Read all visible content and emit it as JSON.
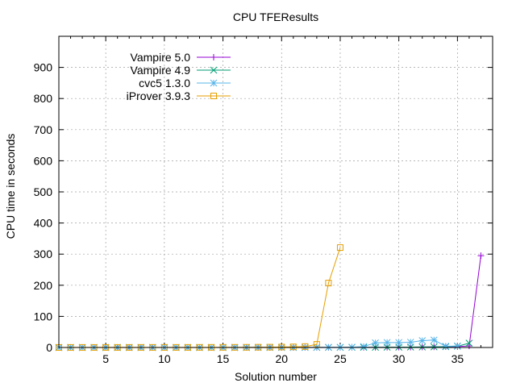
{
  "chart_data": {
    "type": "line",
    "title": "CPU TFEResults",
    "xlabel": "Solution number",
    "ylabel": "CPU time in seconds",
    "xlim": [
      1,
      38
    ],
    "ylim": [
      0,
      1000
    ],
    "x_ticks": [
      5,
      10,
      15,
      20,
      25,
      30,
      35
    ],
    "y_ticks": [
      0,
      100,
      200,
      300,
      400,
      500,
      600,
      700,
      800,
      900
    ],
    "grid": true,
    "legend_position": "top-left",
    "series": [
      {
        "name": "Vampire 5.0",
        "color": "#9400d3",
        "marker": "plus",
        "x": [
          1,
          2,
          3,
          4,
          5,
          6,
          7,
          8,
          9,
          10,
          11,
          12,
          13,
          14,
          15,
          16,
          17,
          18,
          19,
          20,
          21,
          22,
          23,
          24,
          25,
          26,
          27,
          28,
          29,
          30,
          31,
          32,
          33,
          34,
          35,
          36,
          37
        ],
        "y": [
          0.1,
          0.1,
          0.1,
          0.1,
          0.1,
          0.1,
          0.1,
          0.1,
          0.1,
          0.1,
          0.1,
          0.1,
          0.1,
          0.1,
          0.1,
          0.1,
          0.1,
          0.2,
          0.2,
          0.2,
          0.2,
          0.3,
          0.3,
          0.3,
          0.4,
          0.5,
          0.6,
          0.7,
          0.8,
          1,
          1.2,
          1.5,
          2,
          2.5,
          3,
          5,
          295
        ]
      },
      {
        "name": "Vampire 4.9",
        "color": "#009e73",
        "marker": "cross",
        "x": [
          1,
          2,
          3,
          4,
          5,
          6,
          7,
          8,
          9,
          10,
          11,
          12,
          13,
          14,
          15,
          16,
          17,
          18,
          19,
          20,
          21,
          22,
          23,
          24,
          25,
          26,
          27,
          28,
          29,
          30,
          31,
          32,
          33,
          34,
          35,
          36
        ],
        "y": [
          0.1,
          0.1,
          0.1,
          0.1,
          0.1,
          0.1,
          0.1,
          0.1,
          0.1,
          0.1,
          0.1,
          0.1,
          0.1,
          0.1,
          0.1,
          0.1,
          0.1,
          0.2,
          0.2,
          0.2,
          0.2,
          0.3,
          0.3,
          0.3,
          0.4,
          0.5,
          0.6,
          0.7,
          0.9,
          1,
          1.2,
          1.5,
          2,
          2.5,
          4,
          14
        ]
      },
      {
        "name": "cvc5 1.3.0",
        "color": "#56b4e9",
        "marker": "star",
        "x": [
          1,
          2,
          3,
          4,
          5,
          6,
          7,
          8,
          9,
          10,
          11,
          12,
          13,
          14,
          15,
          16,
          17,
          18,
          19,
          20,
          21,
          22,
          23,
          24,
          25,
          26,
          27,
          28,
          29,
          30,
          31,
          32,
          33,
          34,
          35
        ],
        "y": [
          0.1,
          0.1,
          0.1,
          0.1,
          0.1,
          0.1,
          0.1,
          0.1,
          0.1,
          0.1,
          0.1,
          0.1,
          0.1,
          0.1,
          0.1,
          0.1,
          0.2,
          0.2,
          0.2,
          0.3,
          0.3,
          0.4,
          0.5,
          0.6,
          0.8,
          1,
          3,
          15,
          16,
          16,
          17,
          22,
          24,
          4,
          5
        ]
      },
      {
        "name": "iProver 3.9.3",
        "color": "#e69f00",
        "marker": "square",
        "x": [
          1,
          2,
          3,
          4,
          5,
          6,
          7,
          8,
          9,
          10,
          11,
          12,
          13,
          14,
          15,
          16,
          17,
          18,
          19,
          20,
          21,
          22,
          23,
          24,
          25
        ],
        "y": [
          0.1,
          0.2,
          0.2,
          0.2,
          0.2,
          0.2,
          0.2,
          0.3,
          0.3,
          0.3,
          0.3,
          0.3,
          0.4,
          0.4,
          0.5,
          0.5,
          0.6,
          0.8,
          1,
          1.5,
          2,
          3,
          10,
          207,
          321
        ]
      }
    ]
  }
}
